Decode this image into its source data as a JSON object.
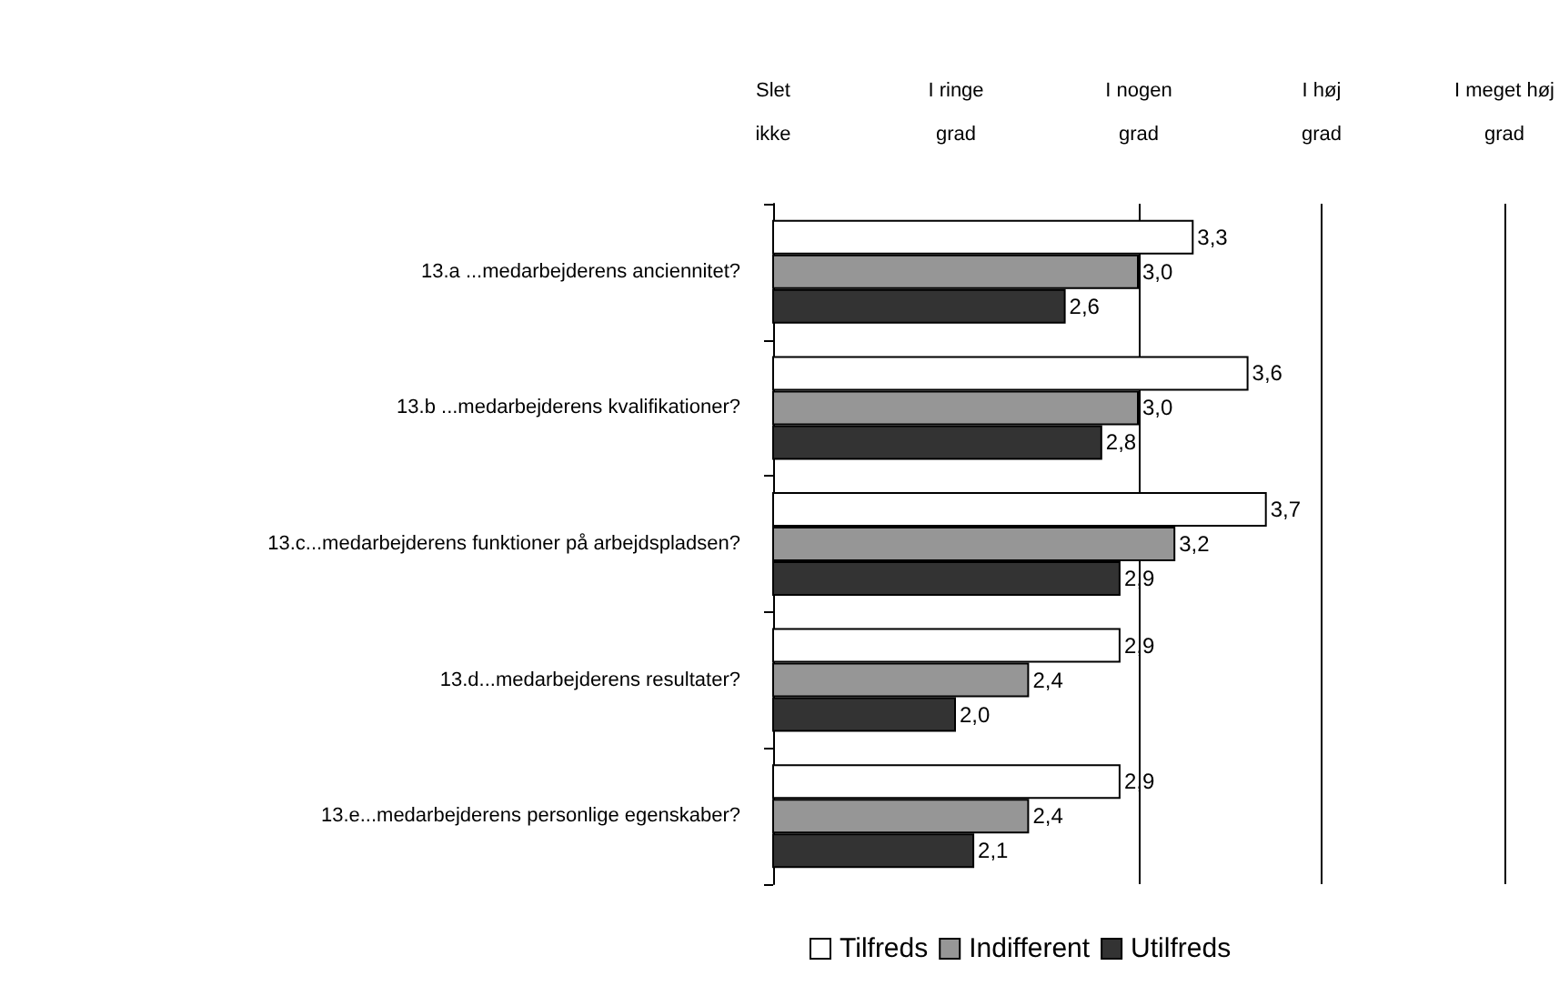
{
  "chart_data": {
    "type": "bar",
    "orientation": "horizontal",
    "categories": [
      "13.a ...medarbejderens anciennitet?",
      "13.b ...medarbejderens kvalifikationer?",
      "13.c...medarbejderens funktioner på arbejdspladsen?",
      "13.d...medarbejderens resultater?",
      "13.e...medarbejderens personlige egenskaber?"
    ],
    "series": [
      {
        "name": "Tilfreds",
        "color": "#ffffff",
        "values": [
          3.3,
          3.6,
          3.7,
          2.9,
          2.9
        ],
        "value_labels": [
          "3,3",
          "3,6",
          "3,7",
          "2,9",
          "2,9"
        ]
      },
      {
        "name": "Indifferent",
        "color": "#969696",
        "values": [
          3.0,
          3.0,
          3.2,
          2.4,
          2.4
        ],
        "value_labels": [
          "3,0",
          "3,0",
          "3,2",
          "2,4",
          "2,4"
        ]
      },
      {
        "name": "Utilfreds",
        "color": "#333333",
        "values": [
          2.6,
          2.8,
          2.9,
          2.0,
          2.1
        ],
        "value_labels": [
          "2,6",
          "2,8",
          "2,9",
          "2,0",
          "2,1"
        ]
      }
    ],
    "xlim": [
      1,
      5
    ],
    "annotations": [
      "Slet ikke",
      "I ringe grad",
      "I nogen grad",
      "I høj grad",
      "I meget høj grad"
    ],
    "ref_lines": [
      {
        "axis": "x",
        "value": 3,
        "color": "#000000"
      },
      {
        "axis": "x",
        "value": 4,
        "color": "#000000"
      },
      {
        "axis": "x",
        "value": 5,
        "color": "#000000"
      }
    ],
    "legend": "bottom"
  }
}
